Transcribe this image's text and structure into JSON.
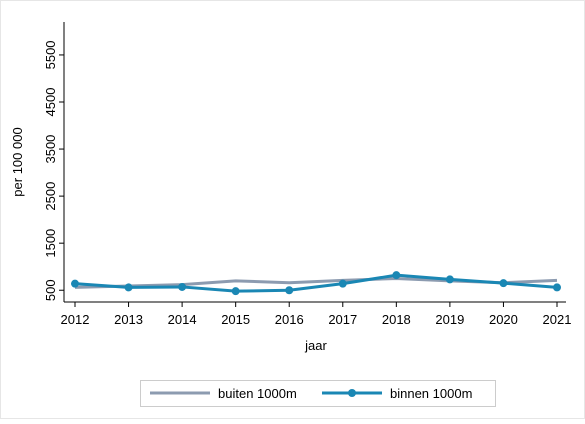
{
  "chart_data": {
    "type": "line",
    "x": [
      2012,
      2013,
      2014,
      2015,
      2016,
      2017,
      2018,
      2019,
      2020,
      2021
    ],
    "xlim": [
      2012,
      2021
    ],
    "xticks": [
      2012,
      2013,
      2014,
      2015,
      2016,
      2017,
      2018,
      2019,
      2020,
      2021
    ],
    "ylim": [
      250,
      6200
    ],
    "yticks": [
      500,
      1500,
      2500,
      3500,
      4500,
      5500
    ],
    "x_label": "jaar",
    "y_label": "per 100 000",
    "legend": "bottom",
    "series": [
      {
        "name": "buiten 1000m",
        "color": "#8c9bb0",
        "markers": false,
        "values": [
          560,
          590,
          620,
          700,
          660,
          710,
          750,
          700,
          660,
          710
        ]
      },
      {
        "name": "binnen 1000m",
        "color": "#1a87b4",
        "markers": true,
        "values": [
          640,
          560,
          570,
          480,
          500,
          640,
          820,
          730,
          650,
          560
        ]
      }
    ]
  }
}
